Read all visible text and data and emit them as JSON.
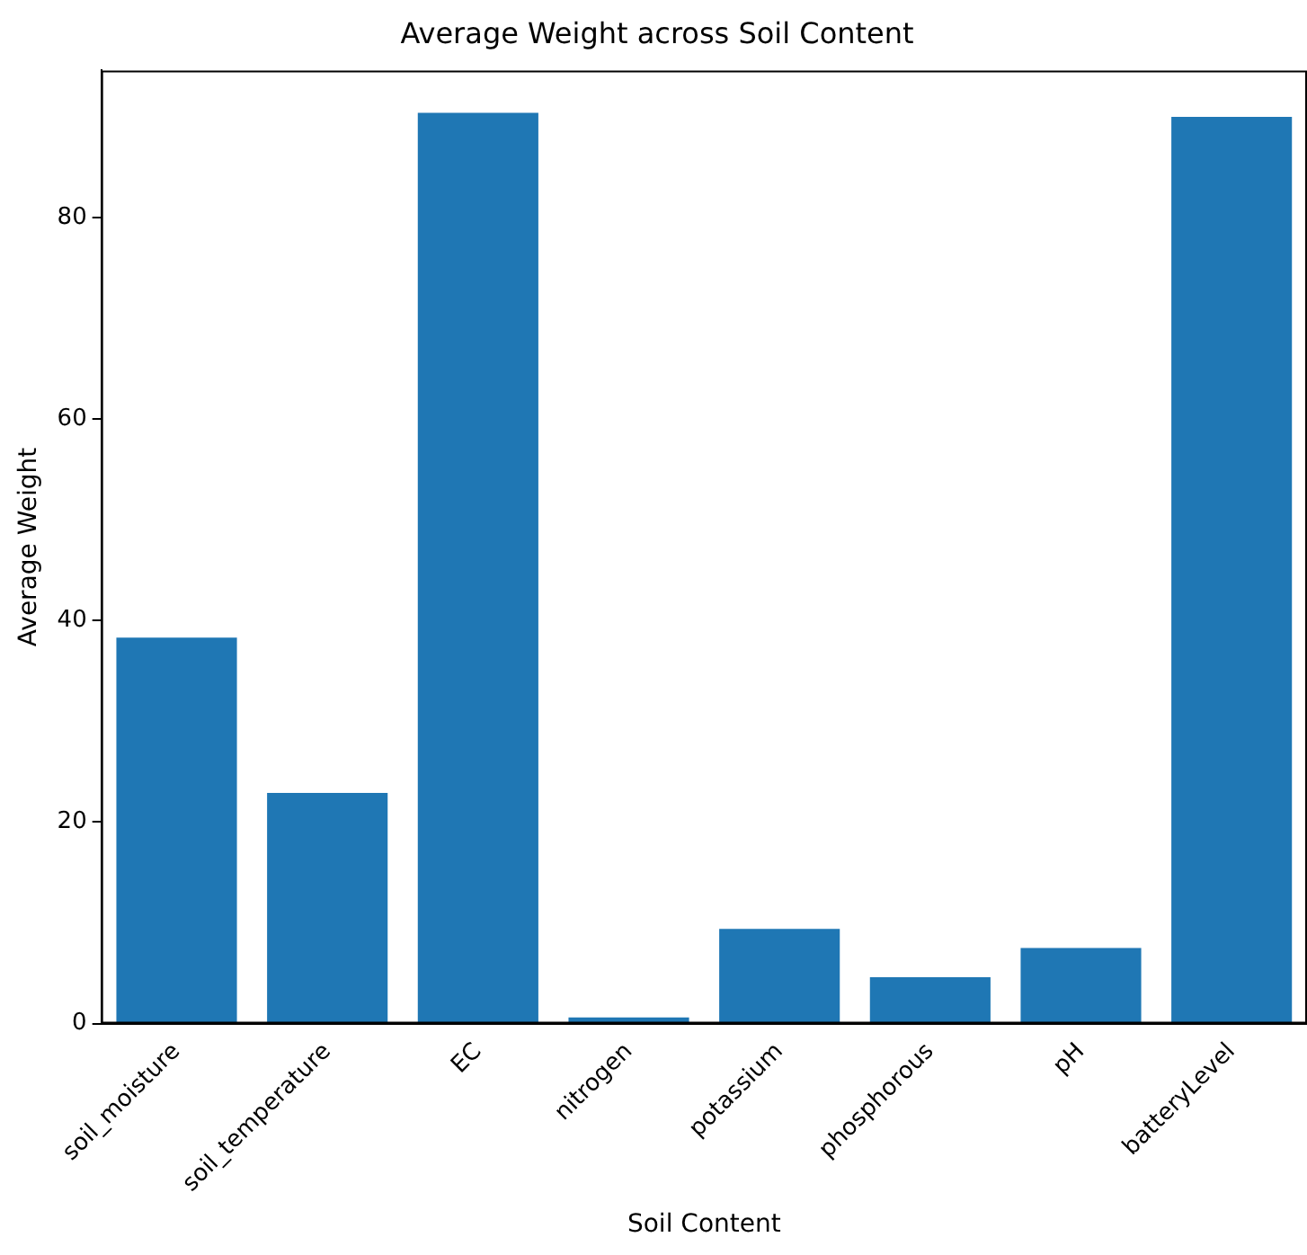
{
  "chart_data": {
    "type": "bar",
    "title": "Average Weight across Soil Content",
    "xlabel": "Soil Content",
    "ylabel": "Average Weight",
    "categories": [
      "soil_moisture",
      "soil_temperature",
      "EC",
      "nitrogen",
      "potassium",
      "phosphorous",
      "pH",
      "batteryLevel"
    ],
    "values": [
      38.3,
      22.9,
      90.4,
      0.6,
      9.4,
      4.6,
      7.5,
      90.0
    ],
    "color": "#1f77b4",
    "ylim": [
      0,
      94.6
    ],
    "yticks": [
      0,
      20,
      40,
      60,
      80
    ],
    "grid": false,
    "legend": false
  }
}
